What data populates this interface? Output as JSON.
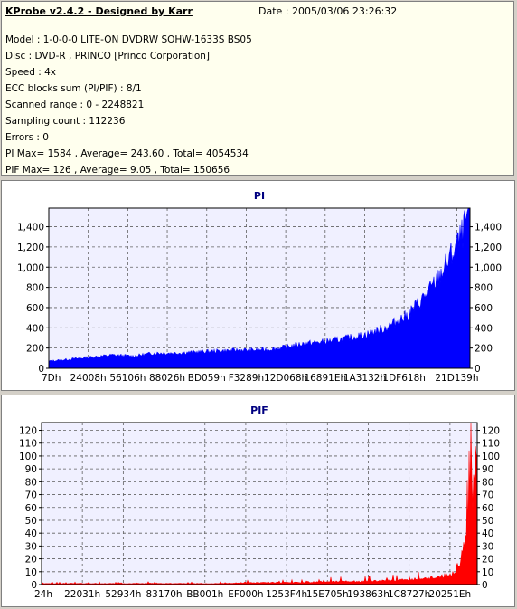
{
  "header": {
    "title": "KProbe v2.4.2 - Designed by Karr",
    "date": "Date : 2005/03/06 23:26:32"
  },
  "info_lines": [
    "Model : 1-0-0-0 LITE-ON DVDRW SOHW-1633S BS05",
    "Disc : DVD-R , PRINCO [Princo Corporation]",
    "Speed : 4x",
    "ECC blocks sum (PI/PIF) : 8/1",
    "Scanned range : 0 - 2248821",
    "Sampling count : 112236",
    "Errors : 0",
    "PI Max= 1584 , Average= 243.60 , Total= 4054534",
    "PIF Max= 126 , Average= 9.05 , Total= 150656"
  ],
  "chart_data": [
    {
      "type": "area",
      "title": "PI",
      "color": "#0000ff",
      "ylim": [
        0,
        1584
      ],
      "y_ticks": [
        0,
        200,
        400,
        600,
        800,
        1000,
        1200,
        1400
      ],
      "y_tick_labels": [
        "0",
        "200",
        "400",
        "600",
        "800",
        "1,000",
        "1,200",
        "1,400"
      ],
      "x_tick_labels": [
        "7Dh",
        "24008h",
        "56106h",
        "88026h",
        "BD059h",
        "F3289h",
        "12D068h",
        "16891Eh",
        "1A3132h",
        "1DF618h",
        "21D139h"
      ],
      "x_tick_fractions": [
        0,
        0.0937,
        0.1875,
        0.2812,
        0.375,
        0.4687,
        0.5625,
        0.6562,
        0.75,
        0.8437,
        0.9687
      ],
      "grid": true,
      "x": [
        0,
        0.05,
        0.1,
        0.15,
        0.2,
        0.25,
        0.3,
        0.35,
        0.4,
        0.45,
        0.5,
        0.55,
        0.6,
        0.65,
        0.7,
        0.75,
        0.8,
        0.85,
        0.88,
        0.91,
        0.94,
        0.96,
        0.98,
        1.0
      ],
      "values": [
        70,
        90,
        110,
        130,
        120,
        150,
        150,
        160,
        170,
        180,
        180,
        200,
        240,
        260,
        290,
        330,
        400,
        520,
        650,
        800,
        1000,
        1150,
        1300,
        1584
      ]
    },
    {
      "type": "area",
      "title": "PIF",
      "color": "#ff0000",
      "ylim": [
        0,
        126
      ],
      "y_ticks": [
        0,
        10,
        20,
        30,
        40,
        50,
        60,
        70,
        80,
        90,
        100,
        110,
        120
      ],
      "y_tick_labels": [
        "0",
        "10",
        "20",
        "30",
        "40",
        "50",
        "60",
        "70",
        "80",
        "90",
        "100",
        "110",
        "120"
      ],
      "x_tick_labels": [
        "24h",
        "22031h",
        "52934h",
        "83170h",
        "BB001h",
        "EF000h",
        "1253F4h",
        "15E705h",
        "193863h",
        "1C8727h",
        "20251Eh"
      ],
      "x_tick_fractions": [
        0,
        0.0937,
        0.1875,
        0.2812,
        0.375,
        0.4687,
        0.5625,
        0.6562,
        0.75,
        0.8437,
        0.9375
      ],
      "grid": true,
      "x": [
        0,
        0.1,
        0.2,
        0.3,
        0.4,
        0.5,
        0.6,
        0.7,
        0.75,
        0.8,
        0.85,
        0.88,
        0.9,
        0.92,
        0.94,
        0.95,
        0.96,
        0.97,
        0.98,
        0.99,
        1.0
      ],
      "values": [
        1,
        1,
        1,
        1,
        1,
        2,
        2,
        3,
        3,
        4,
        5,
        6,
        7,
        8,
        10,
        14,
        20,
        35,
        60,
        95,
        126
      ]
    }
  ]
}
